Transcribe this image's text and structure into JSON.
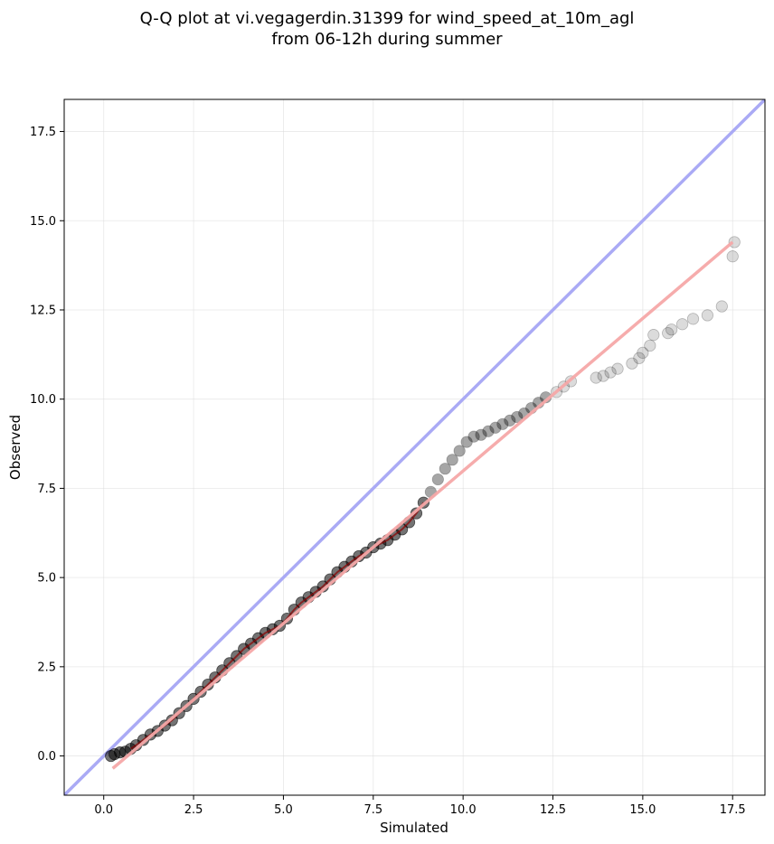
{
  "chart_data": {
    "type": "scatter",
    "title": "Q-Q plot at vi.vegagerdin.31399 for wind_speed_at_10m_agl\nfrom 06-12h during summer",
    "title_lines": [
      "Q-Q plot at vi.vegagerdin.31399 for wind_speed_at_10m_agl",
      "from 06-12h during summer"
    ],
    "xlabel": "Simulated",
    "ylabel": "Observed",
    "xlim": [
      -1.1,
      18.4
    ],
    "ylim": [
      -1.1,
      18.4
    ],
    "xticks": [
      0.0,
      2.5,
      5.0,
      7.5,
      10.0,
      12.5,
      15.0,
      17.5
    ],
    "yticks": [
      0.0,
      2.5,
      5.0,
      7.5,
      10.0,
      12.5,
      15.0,
      17.5
    ],
    "xtick_labels": [
      "0.0",
      "2.5",
      "5.0",
      "7.5",
      "10.0",
      "12.5",
      "15.0",
      "17.5"
    ],
    "ytick_labels": [
      "0.0",
      "2.5",
      "5.0",
      "7.5",
      "10.0",
      "12.5",
      "15.0",
      "17.5"
    ],
    "grid": true,
    "colors": {
      "identity_line": "#aaaaf5",
      "fit_line": "#f5a8a8",
      "points": "#000000",
      "dense_band": "#8b0000"
    },
    "series": [
      {
        "kind": "scatter",
        "points": [
          [
            0.2,
            0.0
          ],
          [
            0.3,
            0.05
          ],
          [
            0.45,
            0.1
          ],
          [
            0.6,
            0.12
          ],
          [
            0.75,
            0.2
          ],
          [
            0.9,
            0.3
          ],
          [
            1.1,
            0.45
          ],
          [
            1.3,
            0.6
          ],
          [
            1.5,
            0.7
          ],
          [
            1.7,
            0.85
          ],
          [
            1.9,
            1.0
          ],
          [
            2.1,
            1.2
          ],
          [
            2.3,
            1.4
          ],
          [
            2.5,
            1.6
          ],
          [
            2.7,
            1.8
          ],
          [
            2.9,
            2.0
          ],
          [
            3.1,
            2.2
          ],
          [
            3.3,
            2.4
          ],
          [
            3.5,
            2.6
          ],
          [
            3.7,
            2.8
          ],
          [
            3.9,
            3.0
          ],
          [
            4.1,
            3.15
          ],
          [
            4.3,
            3.3
          ],
          [
            4.5,
            3.45
          ],
          [
            4.7,
            3.55
          ],
          [
            4.9,
            3.65
          ],
          [
            5.1,
            3.85
          ],
          [
            5.3,
            4.1
          ],
          [
            5.5,
            4.3
          ],
          [
            5.7,
            4.45
          ],
          [
            5.9,
            4.6
          ],
          [
            6.1,
            4.75
          ],
          [
            6.3,
            4.95
          ],
          [
            6.5,
            5.15
          ],
          [
            6.7,
            5.3
          ],
          [
            6.9,
            5.45
          ],
          [
            7.1,
            5.6
          ],
          [
            7.3,
            5.7
          ],
          [
            7.5,
            5.85
          ],
          [
            7.7,
            5.95
          ],
          [
            7.9,
            6.05
          ],
          [
            8.1,
            6.2
          ],
          [
            8.3,
            6.35
          ],
          [
            8.5,
            6.55
          ],
          [
            8.7,
            6.8
          ],
          [
            8.9,
            7.1
          ],
          [
            9.1,
            7.4
          ],
          [
            9.3,
            7.75
          ],
          [
            9.5,
            8.05
          ],
          [
            9.7,
            8.3
          ],
          [
            9.9,
            8.55
          ],
          [
            10.1,
            8.8
          ],
          [
            10.3,
            8.95
          ],
          [
            10.5,
            9.0
          ],
          [
            10.7,
            9.1
          ],
          [
            10.9,
            9.2
          ],
          [
            11.1,
            9.3
          ],
          [
            11.3,
            9.4
          ],
          [
            11.5,
            9.5
          ],
          [
            11.7,
            9.6
          ],
          [
            11.9,
            9.75
          ],
          [
            12.1,
            9.9
          ],
          [
            12.3,
            10.05
          ],
          [
            12.6,
            10.2
          ],
          [
            12.8,
            10.35
          ],
          [
            13.0,
            10.5
          ],
          [
            13.7,
            10.6
          ],
          [
            13.9,
            10.65
          ],
          [
            14.1,
            10.75
          ],
          [
            14.3,
            10.85
          ],
          [
            14.7,
            11.0
          ],
          [
            14.9,
            11.15
          ],
          [
            15.0,
            11.3
          ],
          [
            15.2,
            11.5
          ],
          [
            15.3,
            11.8
          ],
          [
            15.7,
            11.85
          ],
          [
            15.8,
            11.95
          ],
          [
            16.1,
            12.1
          ],
          [
            16.4,
            12.25
          ],
          [
            16.8,
            12.35
          ],
          [
            17.2,
            12.6
          ],
          [
            17.5,
            14.0
          ],
          [
            17.55,
            14.4
          ]
        ]
      },
      {
        "kind": "line",
        "points": [
          [
            -1.1,
            -1.1
          ],
          [
            18.4,
            18.4
          ]
        ]
      },
      {
        "kind": "line",
        "points": [
          [
            0.25,
            -0.35
          ],
          [
            17.5,
            14.4
          ]
        ]
      }
    ]
  }
}
